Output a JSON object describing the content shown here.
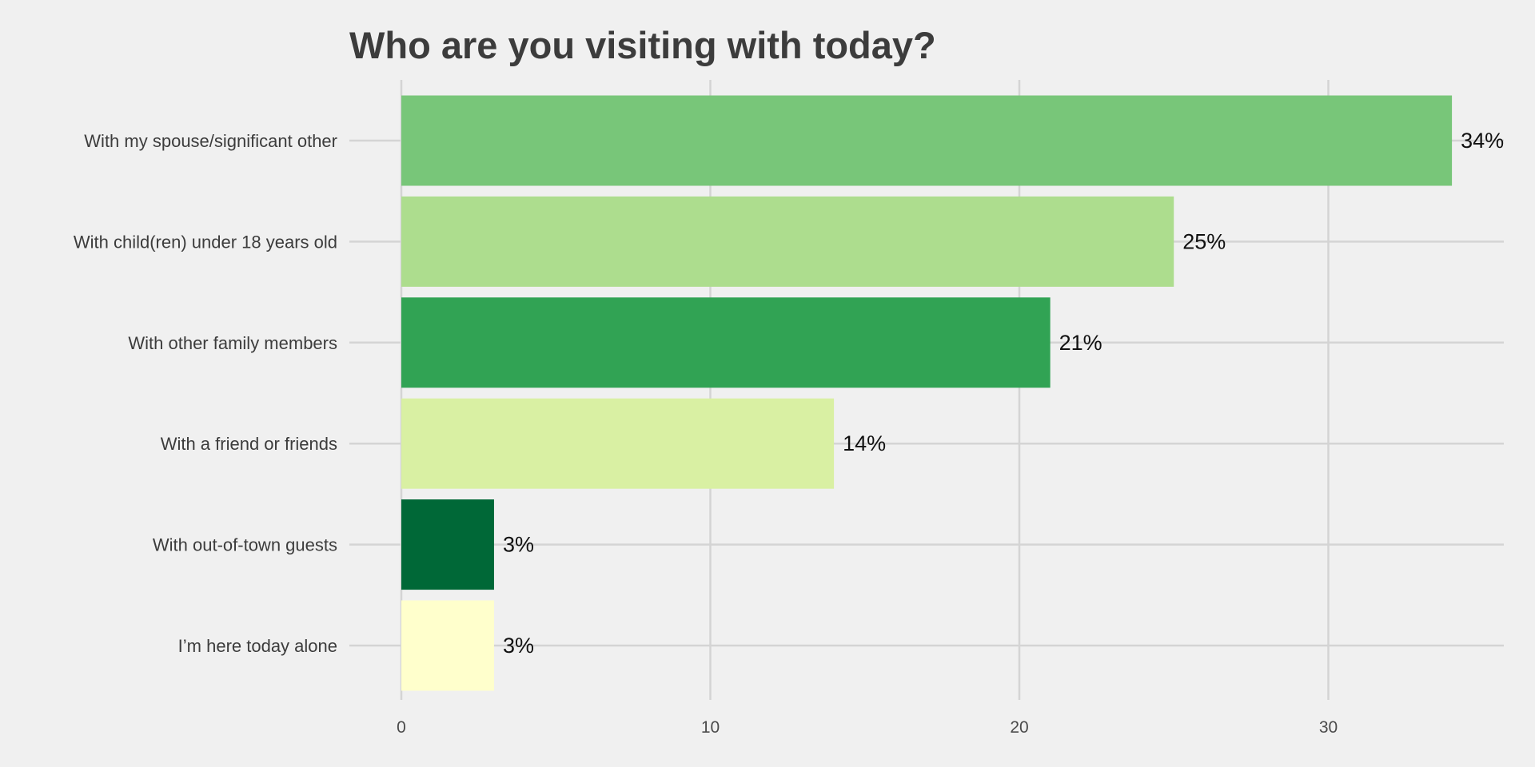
{
  "chart_data": {
    "type": "bar",
    "orientation": "horizontal",
    "title": "Who are you visiting with today?",
    "xlabel": "",
    "ylabel": "",
    "xlim": [
      0,
      35.7
    ],
    "x_ticks": [
      0,
      10,
      20,
      30
    ],
    "grid": true,
    "legend": "none",
    "categories": [
      "With my spouse/significant other",
      "With child(ren) under 18 years old",
      "With other family members",
      "With a friend or friends",
      "With out-of-town guests",
      "I’m here today alone"
    ],
    "values": [
      34,
      25,
      21,
      14,
      3,
      3
    ],
    "data_labels": [
      "34%",
      "25%",
      "21%",
      "14%",
      "3%",
      "3%"
    ],
    "colors": [
      "#78c679",
      "#addd8e",
      "#31a354",
      "#d9f0a3",
      "#006837",
      "#ffffcc"
    ]
  }
}
